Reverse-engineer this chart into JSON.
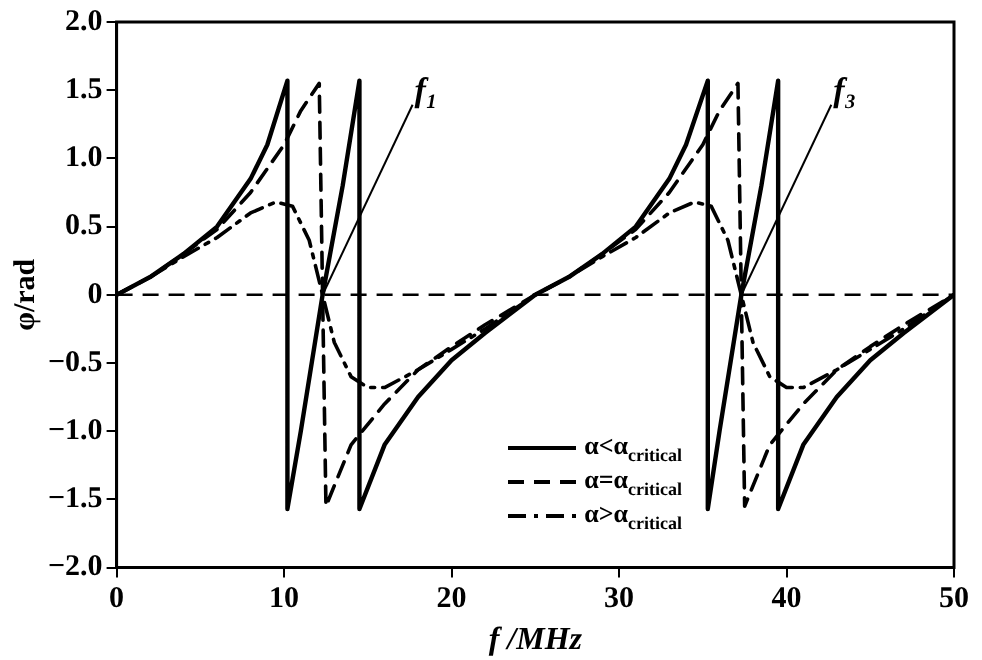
{
  "chart_data": {
    "type": "line",
    "xlabel": "f /MHz",
    "ylabel": "φ/rad",
    "xlim": [
      0,
      50
    ],
    "xticks": [
      0,
      10,
      20,
      30,
      40,
      50
    ],
    "ylim": [
      -2,
      2
    ],
    "yticks": [
      {
        "value": -2,
        "label": "−2.0"
      },
      {
        "value": -1.5,
        "label": "−1.5"
      },
      {
        "value": -1,
        "label": "−1.0"
      },
      {
        "value": -0.5,
        "label": "−0.5"
      },
      {
        "value": 0,
        "label": "0"
      },
      {
        "value": 0.5,
        "label": "0.5"
      },
      {
        "value": 1,
        "label": "1.0"
      },
      {
        "value": 1.5,
        "label": "1.5"
      },
      {
        "value": 2,
        "label": "2.0"
      }
    ],
    "grid": false,
    "legend": "bottom right",
    "marker": "none",
    "series": [
      {
        "name": "α<α$_{critical}$",
        "color": "#000000",
        "line_style": "solid",
        "x": [
          0,
          2,
          4,
          6,
          8,
          9,
          10.2,
          10.2,
          11,
          12.3,
          13.5,
          14.5,
          14.5,
          16,
          18,
          20,
          22,
          25,
          27,
          29,
          31,
          33,
          34,
          35.3,
          35.3,
          36,
          37.3,
          38.5,
          39.5,
          39.5,
          41,
          43,
          45,
          47,
          50
        ],
        "values": [
          0,
          0.13,
          0.3,
          0.5,
          0.85,
          1.1,
          1.57,
          -1.57,
          -1,
          0,
          0.8,
          1.57,
          -1.57,
          -1.1,
          -0.75,
          -0.48,
          -0.28,
          0,
          0.13,
          0.3,
          0.5,
          0.85,
          1.1,
          1.57,
          -1.57,
          -1,
          0,
          0.8,
          1.57,
          -1.57,
          -1.1,
          -0.75,
          -0.48,
          -0.28,
          0
        ]
      },
      {
        "name": "α=α$_{critical}$",
        "color": "#000000",
        "line_style": "dashed",
        "x": [
          0,
          2,
          4,
          6,
          8,
          10,
          11,
          12.1,
          12.3,
          12.5,
          14,
          16,
          18,
          20,
          22,
          25,
          27,
          29,
          31,
          33,
          35,
          36,
          37.1,
          37.3,
          37.5,
          39,
          41,
          43,
          45,
          47,
          50
        ],
        "values": [
          0,
          0.13,
          0.3,
          0.48,
          0.75,
          1.1,
          1.35,
          1.55,
          0,
          -1.55,
          -1.1,
          -0.8,
          -0.55,
          -0.38,
          -0.22,
          0,
          0.13,
          0.3,
          0.48,
          0.75,
          1.1,
          1.35,
          1.55,
          0,
          -1.55,
          -1.1,
          -0.8,
          -0.55,
          -0.38,
          -0.22,
          0
        ]
      },
      {
        "name": "α>α$_{critical}$",
        "color": "#000000",
        "line_style": "dashdot",
        "x": [
          0,
          2,
          4,
          6,
          8,
          9.5,
          10.5,
          11.5,
          12.3,
          13,
          14,
          15,
          16,
          18,
          20,
          22,
          25,
          27,
          29,
          31,
          33,
          34.5,
          35.5,
          36.5,
          37.3,
          38,
          39,
          40,
          41,
          43,
          45,
          47,
          50
        ],
        "values": [
          0,
          0.13,
          0.28,
          0.42,
          0.6,
          0.68,
          0.65,
          0.4,
          0,
          -0.35,
          -0.6,
          -0.68,
          -0.68,
          -0.55,
          -0.4,
          -0.25,
          0,
          0.13,
          0.28,
          0.42,
          0.6,
          0.68,
          0.65,
          0.4,
          0,
          -0.35,
          -0.6,
          -0.68,
          -0.68,
          -0.55,
          -0.4,
          -0.25,
          0
        ]
      }
    ],
    "ref_lines": [
      {
        "axis": "y",
        "value": 0,
        "line_style": "dashed",
        "color": "#000000"
      }
    ],
    "annotations": [
      {
        "text": "f₁",
        "x": 12.3,
        "y": 0
      },
      {
        "text": "f₃",
        "x": 37.3,
        "y": 0
      }
    ]
  }
}
